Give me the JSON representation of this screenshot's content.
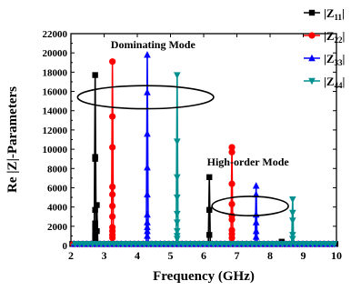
{
  "chart_data": {
    "type": "line",
    "xlabel": "Frequency (GHz)",
    "ylabel": "Re |Z|-Parameters",
    "xlim": [
      2,
      10
    ],
    "ylim": [
      0,
      22000
    ],
    "x_ticks": [
      2,
      3,
      4,
      5,
      6,
      7,
      8,
      9,
      10
    ],
    "y_ticks": [
      0,
      2000,
      4000,
      6000,
      8000,
      10000,
      12000,
      14000,
      16000,
      18000,
      20000,
      22000
    ],
    "legend_position": "top-right outside",
    "annotations": [
      {
        "text": "Dominating Mode",
        "x": 3.2,
        "y": 20500
      },
      {
        "text": "High-order Mode",
        "x": 6.1,
        "y": 8300
      }
    ],
    "ellipses": [
      {
        "cx": 4.25,
        "cy": 15400,
        "rx": 2.05,
        "ry": 1200
      },
      {
        "cx": 7.4,
        "cy": 4100,
        "rx": 1.15,
        "ry": 1000
      }
    ],
    "series": [
      {
        "name_main": "|Z",
        "name_sub": "11",
        "name_end": "|",
        "color": "#000000",
        "marker": "square",
        "peaks": [
          {
            "x": 2.73,
            "y": 17700,
            "points": [
              17700,
              9200,
              9000,
              3700,
              2300,
              1800,
              1200,
              900,
              600
            ]
          },
          {
            "x": 2.78,
            "y": 4200,
            "points": [
              4200,
              1500
            ]
          },
          {
            "x": 6.17,
            "y": 7100,
            "points": [
              7100,
              3700,
              1100
            ]
          },
          {
            "x": 8.35,
            "y": 400,
            "points": [
              400
            ]
          }
        ]
      },
      {
        "name_main": "|Z",
        "name_sub": "22",
        "name_end": "|",
        "color": "#ff0000",
        "marker": "circle",
        "peaks": [
          {
            "x": 3.25,
            "y": 19100,
            "points": [
              19100,
              13400,
              10200,
              6100,
              5300,
              4100,
              3000,
              1900,
              1500,
              1100,
              800
            ]
          },
          {
            "x": 6.85,
            "y": 10200,
            "points": [
              10200,
              9700,
              6400,
              4300,
              3100,
              2700,
              1600,
              1200,
              800
            ]
          }
        ]
      },
      {
        "name_main": "|Z",
        "name_sub": "33",
        "name_end": "|",
        "color": "#0000ff",
        "marker": "triangle",
        "peaks": [
          {
            "x": 4.3,
            "y": 19800,
            "points": [
              19800,
              15900,
              11600,
              8100,
              5300,
              3200,
              2400,
              1900,
              1500,
              1000
            ]
          },
          {
            "x": 7.58,
            "y": 6200,
            "points": [
              6200,
              5300,
              3200,
              2400,
              1500,
              900
            ]
          }
        ]
      },
      {
        "name_main": "|Z",
        "name_sub": "44",
        "name_end": "|",
        "color": "#009090",
        "marker": "triangle-down",
        "peaks": [
          {
            "x": 5.2,
            "y": 17700,
            "points": [
              17700,
              10800,
              7100,
              5000,
              3300,
              2400,
              1500,
              1000,
              700
            ]
          },
          {
            "x": 8.68,
            "y": 4800,
            "points": [
              4800,
              3400,
              2600,
              1100,
              700
            ]
          }
        ]
      }
    ]
  }
}
